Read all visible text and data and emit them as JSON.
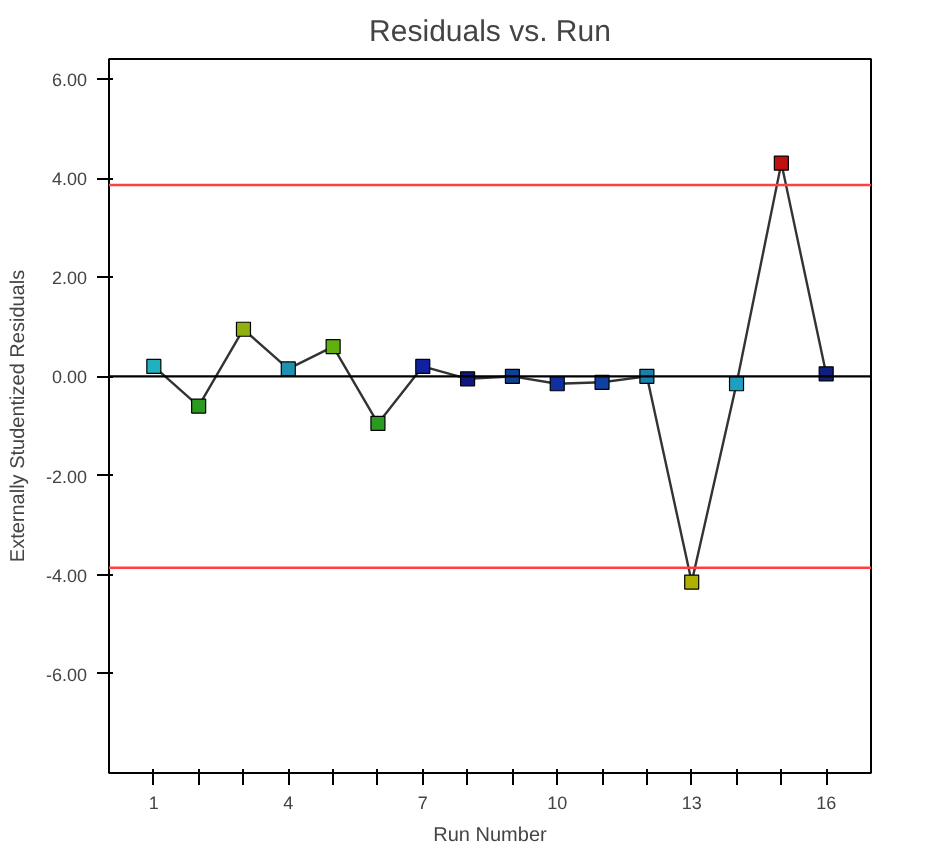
{
  "chart_data": {
    "type": "line",
    "title": "Residuals vs. Run",
    "xlabel": "Run Number",
    "ylabel": "Externally Studentized Residuals",
    "x": [
      1,
      2,
      3,
      4,
      5,
      6,
      7,
      8,
      9,
      10,
      11,
      12,
      13,
      14,
      15,
      16
    ],
    "series": [
      {
        "color": "#333333",
        "values": [
          0.2,
          -0.6,
          0.95,
          0.15,
          0.6,
          -0.95,
          0.2,
          -0.05,
          0.0,
          -0.15,
          -0.12,
          0.0,
          -4.15,
          -0.15,
          4.3,
          0.05
        ],
        "colors": [
          "#20b0c0",
          "#2a9a20",
          "#90b010",
          "#2090b0",
          "#60b010",
          "#2a9a20",
          "#1020a0",
          "#101880",
          "#104090",
          "#1030a0",
          "#1040a0",
          "#1a80b0",
          "#b0b000",
          "#20a0c0",
          "#c01010",
          "#102080"
        ]
      }
    ],
    "marker": "square",
    "grid": false,
    "xlim": [
      0,
      17
    ],
    "ylim": [
      -8,
      6.4
    ],
    "xticks": [
      1,
      {
        "value": 2,
        "label": null
      },
      {
        "value": 3,
        "label": null
      },
      4,
      {
        "value": 5,
        "label": null
      },
      {
        "value": 6,
        "label": null
      },
      7,
      {
        "value": 8,
        "label": null
      },
      {
        "value": 9,
        "label": null
      },
      10,
      {
        "value": 11,
        "label": null
      },
      {
        "value": 12,
        "label": null
      },
      13,
      {
        "value": 14,
        "label": null
      },
      {
        "value": 15,
        "label": null
      },
      16
    ],
    "yticks": [
      {
        "value": -6,
        "label": "-6.00"
      },
      {
        "value": -4,
        "label": "-4.00"
      },
      {
        "value": -2,
        "label": "-2.00"
      },
      {
        "value": 0,
        "label": "0.00"
      },
      {
        "value": 2,
        "label": "2.00"
      },
      {
        "value": 4,
        "label": "4.00"
      },
      {
        "value": 6,
        "label": "6.00"
      }
    ],
    "ref_lines": [
      {
        "axis": "y",
        "value": 0,
        "color": "#000000"
      },
      {
        "axis": "y",
        "value": 3.86,
        "color": "#ff4040"
      },
      {
        "axis": "y",
        "value": -3.86,
        "color": "#ff4040"
      }
    ]
  }
}
